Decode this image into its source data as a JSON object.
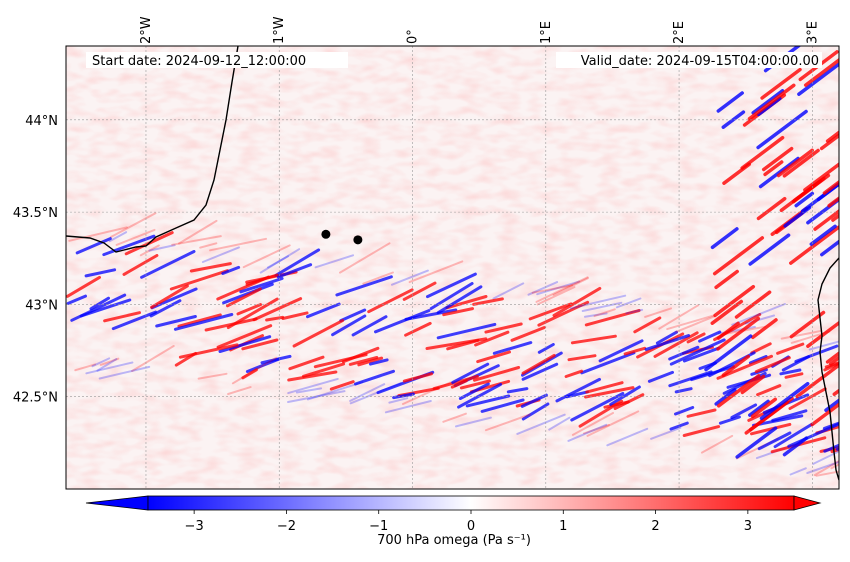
{
  "map": {
    "start_label": "Start date: 2024-09-12_12:00:00",
    "valid_label": "Valid_date: 2024-09-15T04:00:00.00",
    "lon_ticks": [
      {
        "lon": -2,
        "label": "2°W"
      },
      {
        "lon": -1,
        "label": "1°W"
      },
      {
        "lon": 0,
        "label": "0°"
      },
      {
        "lon": 1,
        "label": "1°E"
      },
      {
        "lon": 2,
        "label": "2°E"
      },
      {
        "lon": 3,
        "label": "3°E"
      }
    ],
    "lat_ticks": [
      {
        "lat": 44.0,
        "label": "44°N"
      },
      {
        "lat": 43.5,
        "label": "43.5°N"
      },
      {
        "lat": 43.0,
        "label": "43°N"
      },
      {
        "lat": 42.5,
        "label": "42.5°N"
      }
    ],
    "extent": {
      "lon_min": -2.6,
      "lon_max": 3.2,
      "lat_min": 42.0,
      "lat_max": 44.4
    },
    "markers": [
      {
        "lon": -0.65,
        "lat": 43.38
      },
      {
        "lon": -0.41,
        "lat": 43.35
      }
    ],
    "colors": {
      "negative": "#0000ff",
      "neutral": "#ffffff",
      "positive": "#ff0000",
      "coastline": "#000000",
      "marker": "#000000"
    }
  },
  "colorbar": {
    "label": "700 hPa omega (Pa s⁻¹)",
    "ticks": [
      {
        "value": -3,
        "label": "−3"
      },
      {
        "value": -2,
        "label": "−2"
      },
      {
        "value": -1,
        "label": "−1"
      },
      {
        "value": 0,
        "label": "0"
      },
      {
        "value": 1,
        "label": "1"
      },
      {
        "value": 2,
        "label": "2"
      },
      {
        "value": 3,
        "label": "3"
      }
    ],
    "range": [
      -3.5,
      3.5
    ],
    "extend": "both"
  }
}
